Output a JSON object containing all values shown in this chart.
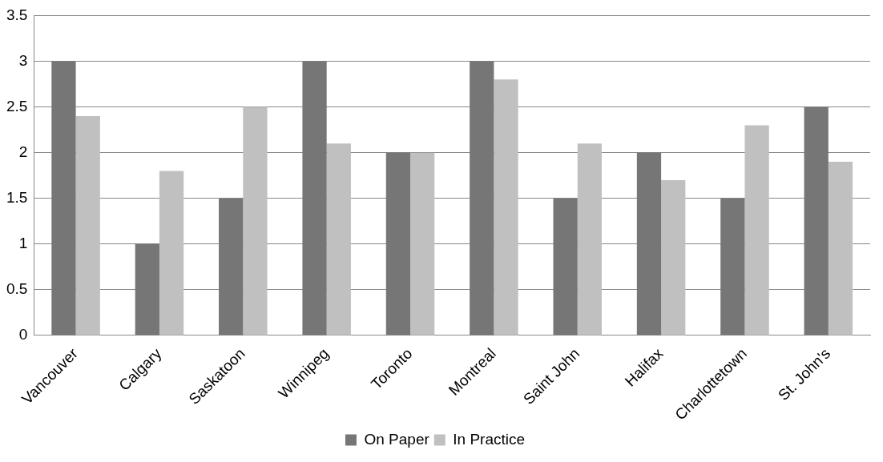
{
  "chart_data": {
    "type": "bar",
    "categories": [
      "Vancouver",
      "Calgary",
      "Saskatoon",
      "Winnipeg",
      "Toronto",
      "Montreal",
      "Saint John",
      "Halifax",
      "Charlottetown",
      "St. John's"
    ],
    "series": [
      {
        "name": "On Paper",
        "color": "#767676",
        "values": [
          3,
          1,
          1.5,
          3,
          2,
          3,
          1.5,
          2,
          1.5,
          2.5
        ]
      },
      {
        "name": "In Practice",
        "color": "#c0c0c0",
        "values": [
          2.4,
          1.8,
          2.5,
          2.1,
          2.0,
          2.8,
          2.1,
          1.7,
          2.3,
          1.9
        ]
      }
    ],
    "ylim": [
      0,
      3.5
    ],
    "yticks": [
      0,
      0.5,
      1,
      1.5,
      2,
      2.5,
      3,
      3.5
    ],
    "grid": "y",
    "legend": "bottom"
  }
}
